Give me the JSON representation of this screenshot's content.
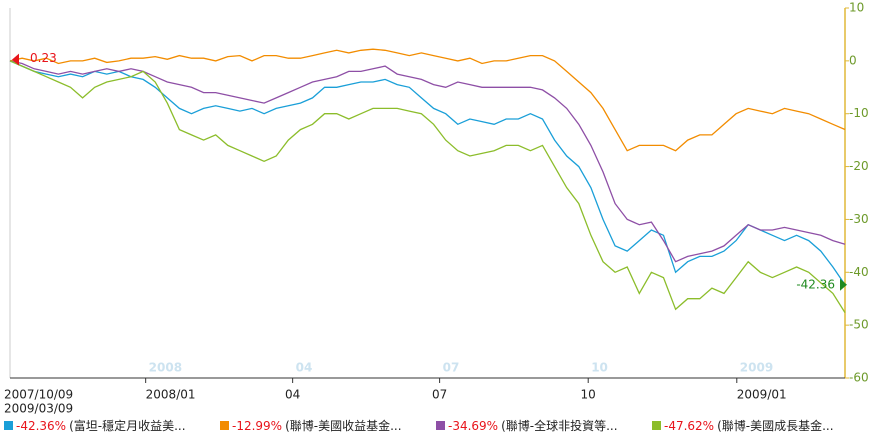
{
  "chart_data": {
    "type": "line",
    "xlim": [
      "2007/10/09",
      "2009/03/09"
    ],
    "x_start_label": "2007/10/09",
    "x_end_label": "2009/03/09",
    "xticks": [
      {
        "value": "2008/01",
        "label": "2008/01"
      },
      {
        "value": "2008/04",
        "label": "04"
      },
      {
        "value": "2008/07",
        "label": "07"
      },
      {
        "value": "2008/10",
        "label": "10"
      },
      {
        "value": "2009/01",
        "label": "2009/01"
      }
    ],
    "period_labels": [
      "2008",
      "04",
      "07",
      "10",
      "2009"
    ],
    "ylim": [
      -60,
      10
    ],
    "yticks": [
      -60,
      -50,
      -40,
      -30,
      -20,
      -10,
      0,
      10
    ],
    "y_axis_side": "right",
    "annotations": [
      {
        "text": "0.23",
        "value": 0.23,
        "at": "start",
        "color": "#e8141b"
      },
      {
        "text": "-42.36",
        "value": -42.36,
        "at": "end",
        "color": "#1f8a1f"
      }
    ],
    "series": [
      {
        "name": "(富坦-穩定月收益美...",
        "legend_label": "-42.36%",
        "color": "#1a9fd8",
        "values": [
          0,
          -1,
          -2,
          -2.5,
          -3,
          -2.5,
          -3,
          -2,
          -2.5,
          -2,
          -3,
          -3.5,
          -5,
          -7,
          -9,
          -10,
          -9,
          -8.5,
          -9,
          -9.5,
          -9,
          -10,
          -9,
          -8.5,
          -8,
          -7,
          -5,
          -5,
          -4.5,
          -4,
          -4,
          -3.5,
          -4.5,
          -5,
          -7,
          -9,
          -10,
          -12,
          -11,
          -11.5,
          -12,
          -11,
          -11,
          -10,
          -11,
          -15,
          -18,
          -20,
          -24,
          -30,
          -35,
          -36,
          -34,
          -32,
          -33,
          -40,
          -38,
          -37,
          -37,
          -36,
          -34,
          -31,
          -32,
          -33,
          -34,
          -33,
          -34,
          -36,
          -39,
          -42.36
        ]
      },
      {
        "name": "(聯博-美國收益基金...",
        "legend_label": "-12.99%",
        "color": "#f28c00",
        "values": [
          0,
          0.5,
          0,
          0.5,
          -0.5,
          0,
          0,
          0.5,
          -0.3,
          0,
          0.5,
          0.5,
          0.8,
          0.3,
          1,
          0.5,
          0.5,
          0,
          0.8,
          1,
          0,
          1,
          1,
          0.5,
          0.5,
          1,
          1.5,
          2,
          1.5,
          2,
          2.2,
          2,
          1.5,
          1,
          1.5,
          1,
          0.5,
          0,
          0.5,
          -0.5,
          0,
          0,
          0.5,
          1,
          1,
          0,
          -2,
          -4,
          -6,
          -9,
          -13,
          -17,
          -16,
          -16,
          -16,
          -17,
          -15,
          -14,
          -14,
          -12,
          -10,
          -9,
          -9.5,
          -10,
          -9,
          -9.5,
          -10,
          -11,
          -12,
          -12.99
        ]
      },
      {
        "name": "(聯博-全球非投資等...",
        "legend_label": "-34.69%",
        "color": "#8e4fa6",
        "values": [
          0,
          -0.5,
          -1.5,
          -2,
          -2.5,
          -2,
          -2.5,
          -2,
          -1.5,
          -2,
          -1.5,
          -2,
          -3,
          -4,
          -4.5,
          -5,
          -6,
          -6,
          -6.5,
          -7,
          -7.5,
          -8,
          -7,
          -6,
          -5,
          -4,
          -3.5,
          -3,
          -2,
          -2,
          -1.5,
          -1,
          -2.5,
          -3,
          -3.5,
          -4.5,
          -5,
          -4,
          -4.5,
          -5,
          -5,
          -5,
          -5,
          -5,
          -5.5,
          -7,
          -9,
          -12,
          -16,
          -21,
          -27,
          -30,
          -31,
          -30.5,
          -34,
          -38,
          -37,
          -36.5,
          -36,
          -35,
          -33,
          -31,
          -32,
          -32,
          -31.5,
          -32,
          -32.5,
          -33,
          -34,
          -34.69
        ]
      },
      {
        "name": "(聯博-美國成長基金...",
        "legend_label": "-47.62%",
        "color": "#8cbd2b",
        "values": [
          0,
          -1,
          -2,
          -3,
          -4,
          -5,
          -7,
          -5,
          -4,
          -3.5,
          -3,
          -2,
          -4,
          -8,
          -13,
          -14,
          -15,
          -14,
          -16,
          -17,
          -18,
          -19,
          -18,
          -15,
          -13,
          -12,
          -10,
          -10,
          -11,
          -10,
          -9,
          -9,
          -9,
          -9.5,
          -10,
          -12,
          -15,
          -17,
          -18,
          -17.5,
          -17,
          -16,
          -16,
          -17,
          -16,
          -20,
          -24,
          -27,
          -33,
          -38,
          -40,
          -39,
          -44,
          -40,
          -41,
          -47,
          -45,
          -45,
          -43,
          -44,
          -41,
          -38,
          -40,
          -41,
          -40,
          -39,
          -40,
          -42,
          -44,
          -47.62
        ]
      }
    ]
  }
}
